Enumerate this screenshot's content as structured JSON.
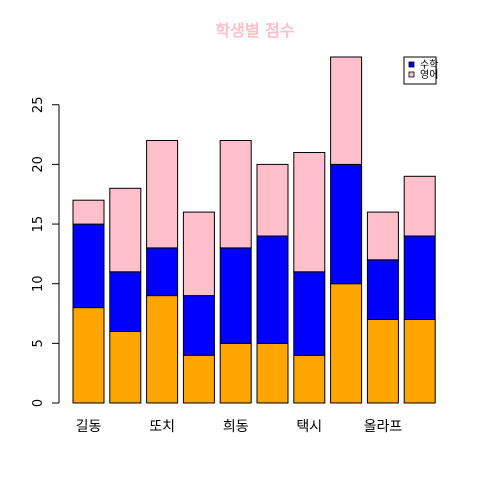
{
  "chart_data": {
    "type": "bar",
    "stacked": true,
    "title": "학생별 점수",
    "title_color": "#ffc0cb",
    "xlabel": "",
    "ylabel": "",
    "ylim": [
      0,
      29
    ],
    "yticks": [
      0,
      5,
      10,
      15,
      20,
      25
    ],
    "categories": [
      "길동",
      "",
      "또치",
      "",
      "희동",
      "",
      "택시",
      "",
      "올라프",
      ""
    ],
    "series": [
      {
        "name": "",
        "color": "#ffa500",
        "values": [
          8,
          6,
          9,
          4,
          5,
          5,
          4,
          10,
          7,
          7
        ]
      },
      {
        "name": "수학",
        "color": "#0000ff",
        "values": [
          7,
          5,
          4,
          5,
          8,
          9,
          7,
          10,
          5,
          7
        ]
      },
      {
        "name": "영어",
        "color": "#ffc0cb",
        "values": [
          2,
          7,
          9,
          7,
          9,
          6,
          10,
          9,
          4,
          5
        ]
      }
    ],
    "legend": {
      "position": "top-right",
      "entries": [
        {
          "label": "수학",
          "color": "#0000ff"
        },
        {
          "label": "영어",
          "color": "#ffc0cb"
        }
      ]
    },
    "grid": false
  }
}
